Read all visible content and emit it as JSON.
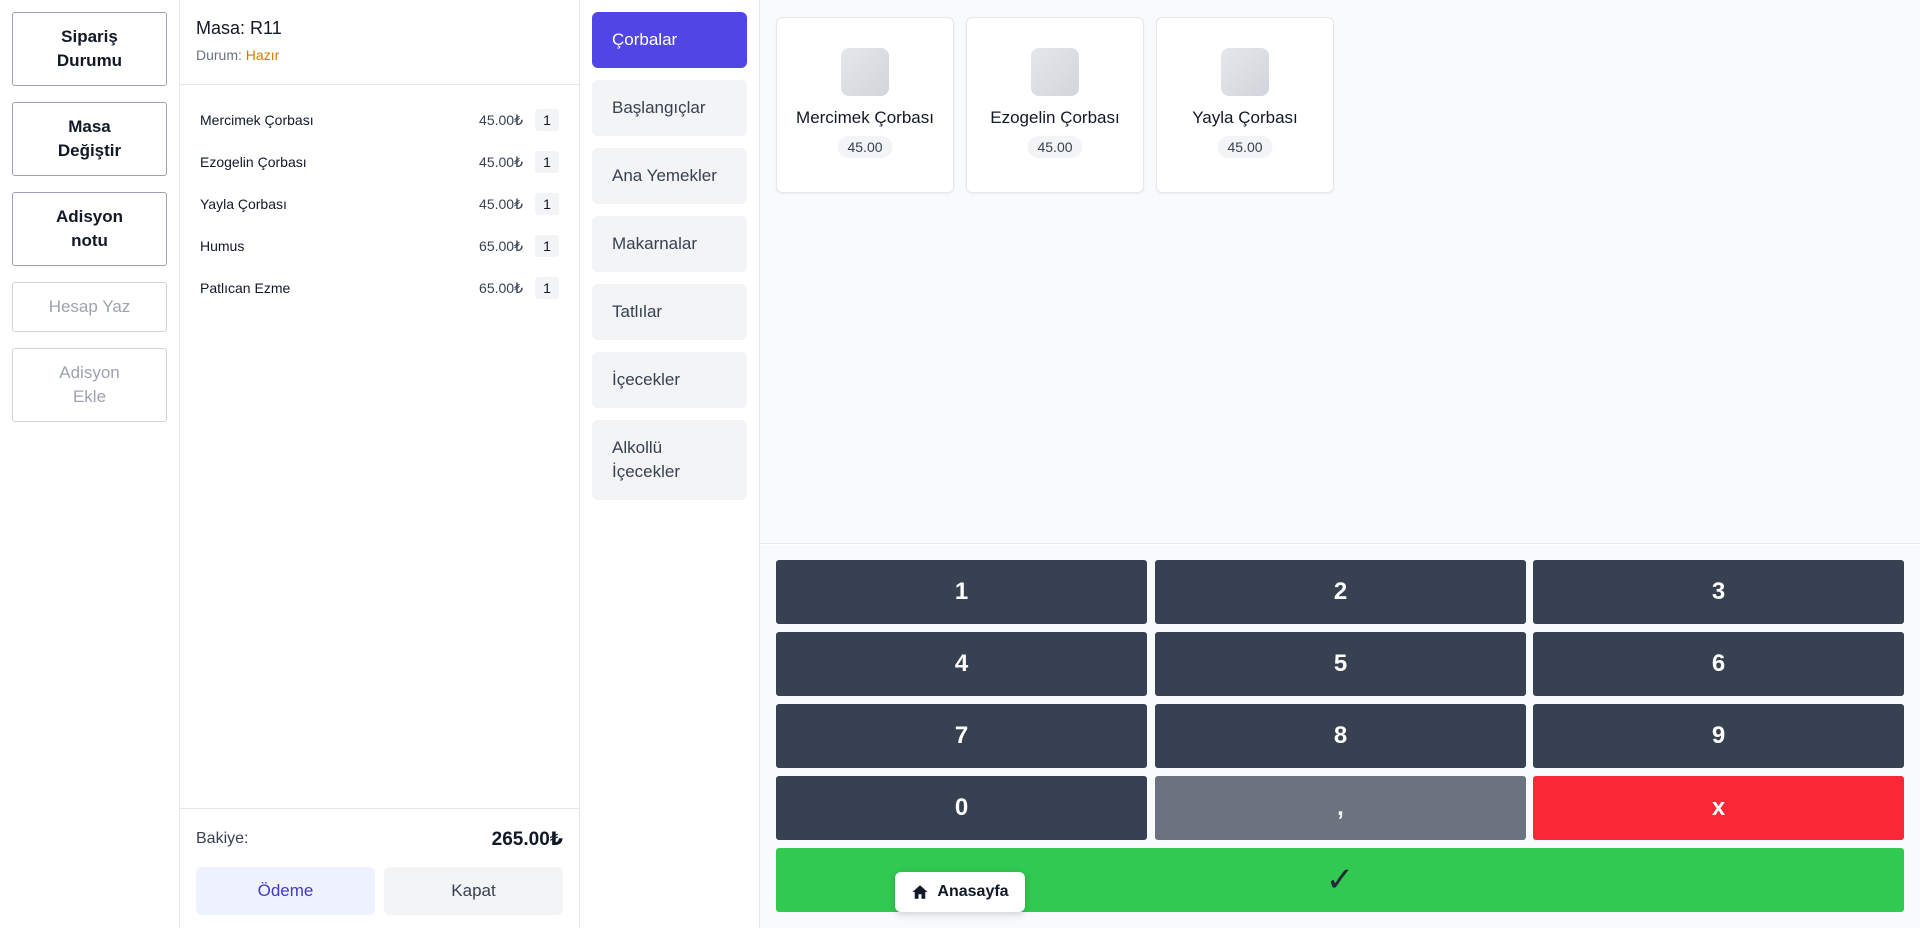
{
  "actions": [
    {
      "label": "Sipariş\nDurumu",
      "enabled": true
    },
    {
      "label": "Masa\nDeğiştir",
      "enabled": true
    },
    {
      "label": "Adisyon\nnotu",
      "enabled": true
    },
    {
      "label": "Hesap Yaz",
      "enabled": false
    },
    {
      "label": "Adisyon\nEkle",
      "enabled": false
    }
  ],
  "order": {
    "table_title": "Masa: R11",
    "status_label": "Durum:",
    "status_value": "Hazır",
    "items": [
      {
        "name": "Mercimek Çorbası",
        "price": "45.00₺",
        "qty": "1"
      },
      {
        "name": "Ezogelin Çorbası",
        "price": "45.00₺",
        "qty": "1"
      },
      {
        "name": "Yayla Çorbası",
        "price": "45.00₺",
        "qty": "1"
      },
      {
        "name": "Humus",
        "price": "65.00₺",
        "qty": "1"
      },
      {
        "name": "Patlıcan Ezme",
        "price": "65.00₺",
        "qty": "1"
      }
    ],
    "balance_label": "Bakiye:",
    "balance_value": "265.00₺",
    "pay_label": "Ödeme",
    "close_label": "Kapat"
  },
  "categories": [
    {
      "label": "Çorbalar",
      "active": true
    },
    {
      "label": "Başlangıçlar",
      "active": false
    },
    {
      "label": "Ana Yemekler",
      "active": false
    },
    {
      "label": "Makarnalar",
      "active": false
    },
    {
      "label": "Tatlılar",
      "active": false
    },
    {
      "label": "İçecekler",
      "active": false
    },
    {
      "label": "Alkollü\nİçecekler",
      "active": false
    }
  ],
  "products": [
    {
      "name": "Mercimek Çorbası",
      "price": "45.00"
    },
    {
      "name": "Ezogelin Çorbası",
      "price": "45.00"
    },
    {
      "name": "Yayla Çorbası",
      "price": "45.00"
    }
  ],
  "numpad": {
    "keys": [
      "1",
      "2",
      "3",
      "4",
      "5",
      "6",
      "7",
      "8",
      "9",
      "0",
      ",",
      "x"
    ],
    "confirm": "✓"
  },
  "home": {
    "label": "Anasayfa",
    "icon": "home-icon"
  },
  "colors": {
    "accent": "#4f46e5",
    "status": "#d97706",
    "key": "#374151",
    "comma_key": "#6b7280",
    "delete_key": "#fa2837",
    "confirm_key": "#31c950"
  }
}
